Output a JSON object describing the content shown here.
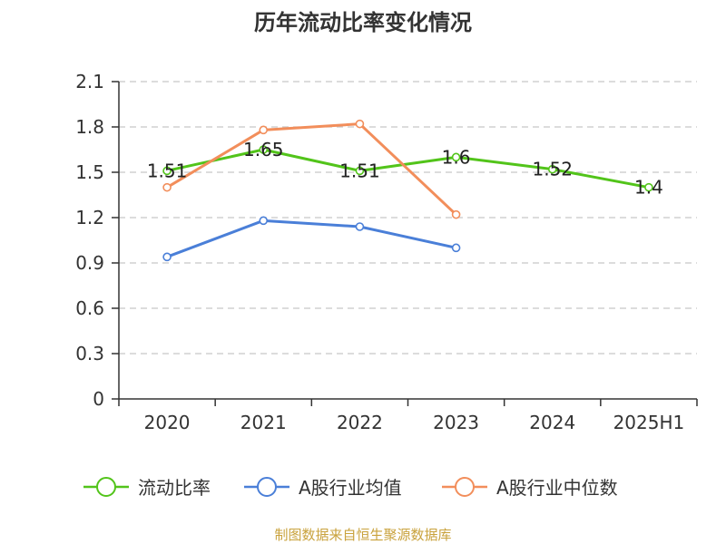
{
  "chart_data": {
    "type": "line",
    "title": "历年流动比率变化情况",
    "categories": [
      "2020",
      "2021",
      "2022",
      "2023",
      "2024",
      "2025H1"
    ],
    "y_ticks": [
      "0",
      "0.3",
      "0.6",
      "0.9",
      "1.2",
      "1.5",
      "1.8",
      "2.1"
    ],
    "ylim": [
      0,
      2.1
    ],
    "grid": "horizontal dashed",
    "legend_position": "bottom",
    "series": [
      {
        "name": "流动比率",
        "color": "#52c41a",
        "values": [
          1.51,
          1.65,
          1.51,
          1.6,
          1.52,
          1.4
        ],
        "labels": [
          "1.51",
          "1.65",
          "1.51",
          "1.6",
          "1.52",
          "1.4"
        ]
      },
      {
        "name": "A股行业均值",
        "color": "#4a7fd8",
        "values": [
          0.94,
          1.18,
          1.14,
          1.0,
          null,
          null
        ]
      },
      {
        "name": "A股行业中位数",
        "color": "#f28e5b",
        "values": [
          1.4,
          1.78,
          1.82,
          1.22,
          null,
          null
        ]
      }
    ]
  },
  "source_text": "制图数据来自恒生聚源数据库",
  "source_color": "#c9a23c",
  "axis_color": "#333333",
  "grid_color": "#c8c8c8"
}
